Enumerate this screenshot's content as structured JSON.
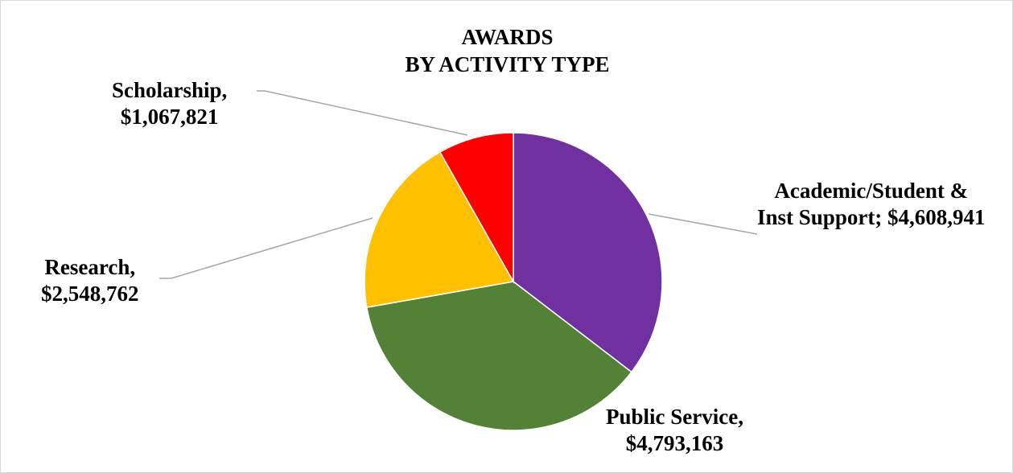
{
  "chart_data": {
    "type": "pie",
    "title": [
      "AWARDS",
      "BY ACTIVITY TYPE"
    ],
    "slices": [
      {
        "name": "Academic/Student & Inst Support",
        "value": 4608941,
        "color": "#7030A0",
        "label_lines": [
          "Academic/Student &",
          "Inst Support; $4,608,941"
        ]
      },
      {
        "name": "Public Service",
        "value": 4793163,
        "color": "#538135",
        "label_lines": [
          "Public Service,",
          "$4,793,163"
        ]
      },
      {
        "name": "Research",
        "value": 2548762,
        "color": "#FFC000",
        "label_lines": [
          "Research,",
          "$2,548,762"
        ]
      },
      {
        "name": "Scholarship",
        "value": 1067821,
        "color": "#FF0000",
        "label_lines": [
          "Scholarship,",
          "$1,067,821"
        ]
      }
    ],
    "legend": "none",
    "leader_line_color": "#A6A6A6"
  }
}
